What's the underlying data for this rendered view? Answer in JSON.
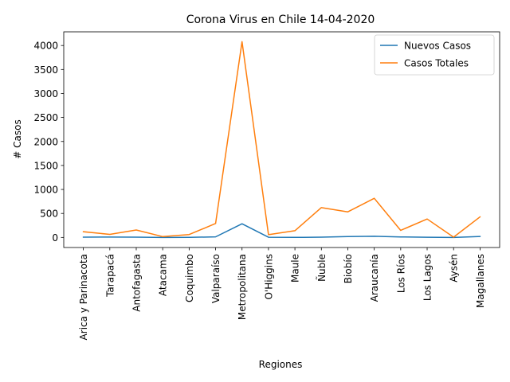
{
  "chart_data": {
    "type": "line",
    "title": "Corona Virus en Chile 14-04-2020",
    "xlabel": "Regiones",
    "ylabel": "# Casos",
    "categories": [
      "Arica y Parinacota",
      "Tarapacá",
      "Antofagasta",
      "Atacama",
      "Coquimbo",
      "Valparaíso",
      "Metropolitana",
      "O'Higgins",
      "Maule",
      "Ñuble",
      "Biobío",
      "Araucanía",
      "Los Ríos",
      "Los Lagos",
      "Aysén",
      "Magallanes"
    ],
    "series": [
      {
        "name": "Nuevos Casos",
        "color": "#1f77b4",
        "values": [
          6,
          8,
          5,
          0,
          1,
          12,
          285,
          4,
          1,
          5,
          17,
          24,
          10,
          4,
          0,
          19
        ]
      },
      {
        "name": "Casos Totales",
        "color": "#ff7f0e",
        "values": [
          119,
          63,
          155,
          17,
          60,
          290,
          4080,
          58,
          140,
          622,
          533,
          815,
          147,
          384,
          6,
          428
        ]
      }
    ],
    "ylim": [
      -210,
      4285
    ],
    "yticks": [
      0,
      500,
      1000,
      1500,
      2000,
      2500,
      3000,
      3500,
      4000
    ],
    "grid": false,
    "legend_position": "top-right"
  }
}
